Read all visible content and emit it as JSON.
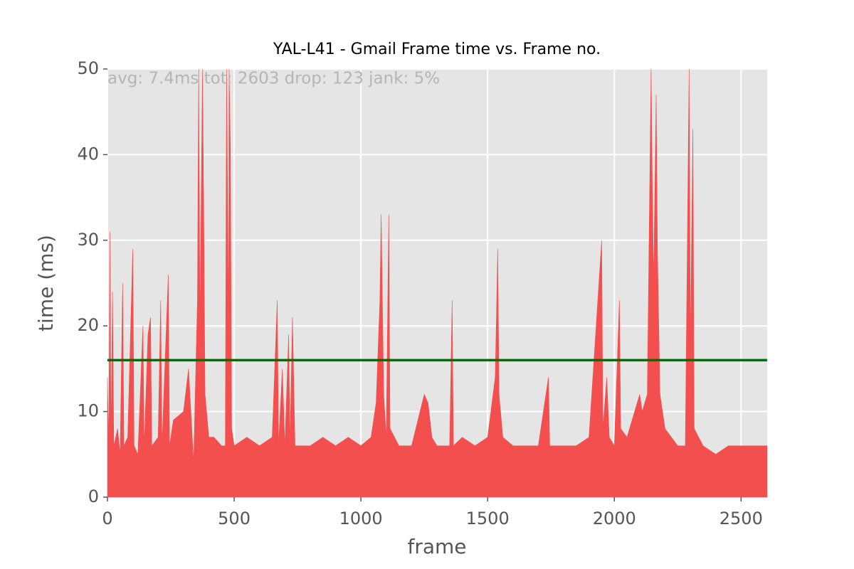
{
  "chart_data": {
    "type": "area",
    "title": "YAL-L41 - Gmail Frame time vs. Frame no.",
    "annotation": "avg: 7.4ms tot: 2603 drop: 123 jank: 5%",
    "xlabel": "frame",
    "ylabel": "time (ms)",
    "color": "#f44f4f",
    "reference_line": {
      "value": 16,
      "color": "#007000"
    },
    "grid": true,
    "xlim": [
      0,
      2603
    ],
    "ylim": [
      0,
      50
    ],
    "xticks": [
      0,
      500,
      1000,
      1500,
      2000,
      2500
    ],
    "yticks": [
      0,
      10,
      20,
      30,
      40,
      50
    ],
    "x": [
      0,
      5,
      10,
      14,
      20,
      25,
      40,
      50,
      60,
      65,
      80,
      100,
      105,
      120,
      140,
      145,
      160,
      170,
      175,
      200,
      210,
      215,
      240,
      245,
      260,
      300,
      320,
      340,
      355,
      360,
      365,
      375,
      380,
      385,
      400,
      420,
      450,
      465,
      470,
      478,
      480,
      485,
      490,
      500,
      550,
      600,
      650,
      670,
      675,
      690,
      700,
      715,
      720,
      730,
      740,
      800,
      850,
      900,
      950,
      1000,
      1040,
      1060,
      1075,
      1080,
      1090,
      1100,
      1110,
      1115,
      1150,
      1200,
      1250,
      1265,
      1280,
      1300,
      1350,
      1360,
      1365,
      1400,
      1450,
      1500,
      1530,
      1540,
      1545,
      1560,
      1600,
      1650,
      1700,
      1740,
      1745,
      1800,
      1850,
      1900,
      1950,
      1955,
      1970,
      1980,
      2000,
      2020,
      2025,
      2050,
      2100,
      2110,
      2130,
      2145,
      2150,
      2155,
      2165,
      2170,
      2180,
      2200,
      2250,
      2280,
      2295,
      2300,
      2310,
      2315,
      2350,
      2400,
      2450,
      2500,
      2550,
      2603
    ],
    "values": [
      14,
      6,
      31,
      7,
      24,
      6,
      8,
      5,
      25,
      6,
      7,
      29,
      6,
      5,
      20,
      6,
      19,
      21,
      6,
      7,
      23,
      6,
      26,
      6,
      9,
      10,
      15,
      4,
      23,
      50,
      20,
      50,
      33,
      12,
      7,
      7,
      6,
      6,
      50,
      20,
      50,
      41,
      8,
      6,
      7,
      6,
      7,
      23,
      6,
      15,
      6,
      19,
      6,
      21,
      6,
      6,
      7,
      6,
      7,
      6,
      7,
      11,
      23,
      33,
      12,
      7,
      33,
      8,
      6,
      6,
      12,
      11,
      7,
      6,
      6,
      23,
      6,
      7,
      6,
      7,
      14,
      29,
      12,
      7,
      6,
      6,
      6,
      14,
      6,
      6,
      6,
      7,
      30,
      8,
      14,
      7,
      6,
      23,
      8,
      7,
      12,
      10,
      12,
      50,
      36,
      25,
      47,
      29,
      12,
      8,
      6,
      6,
      50,
      18,
      43,
      8,
      6,
      5,
      6,
      6,
      6,
      6
    ]
  }
}
